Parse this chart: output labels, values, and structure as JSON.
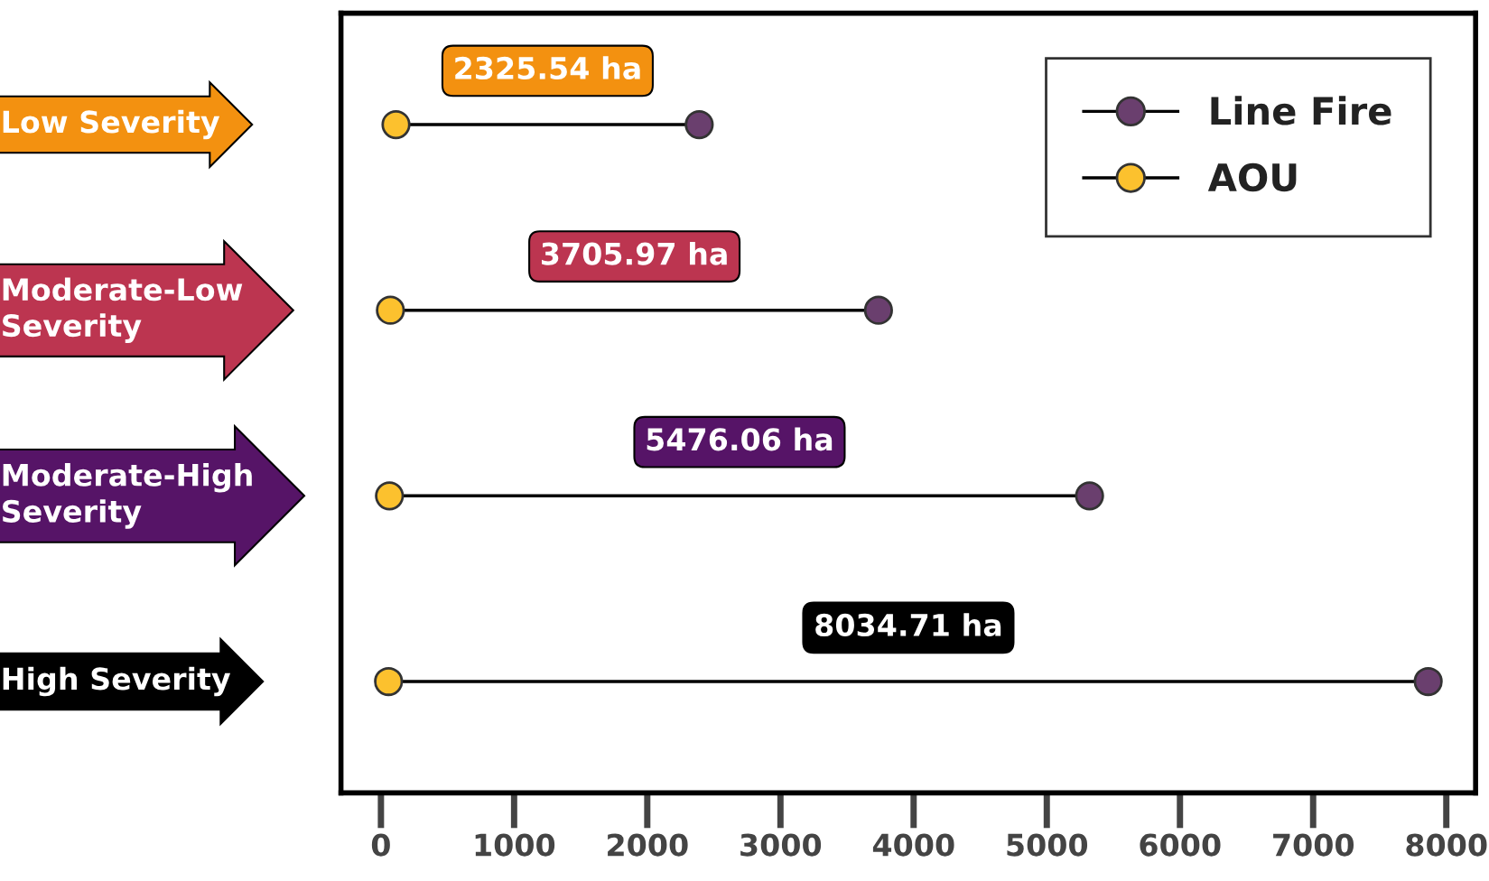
{
  "chart_data": {
    "type": "scatter",
    "annotations": [
      "2325.54 ha",
      "3705.97 ha",
      "5476.06 ha",
      "8034.71 ha"
    ],
    "categories": [
      "Low Severity",
      "Moderate-Low\nSeverity",
      "Moderate-High\nSeverity",
      "High Severity"
    ],
    "colors": [
      "#f39110",
      "#bc3550",
      "#561467",
      "#000000"
    ],
    "series": [
      {
        "name": "Line Fire",
        "color": "#6a3f6e",
        "values": [
          2390,
          3736,
          5321,
          7864
        ]
      },
      {
        "name": "AOU",
        "color": "#fcc12e",
        "values": [
          113,
          71,
          64,
          57
        ]
      }
    ],
    "orientation": "horizontal",
    "marker": "circle",
    "line_style": "solid",
    "xlim": [
      -300,
      8220
    ],
    "xticks": [
      0,
      1000,
      2000,
      3000,
      4000,
      5000,
      6000,
      7000,
      8000
    ],
    "legend": "top right",
    "grid": false
  }
}
